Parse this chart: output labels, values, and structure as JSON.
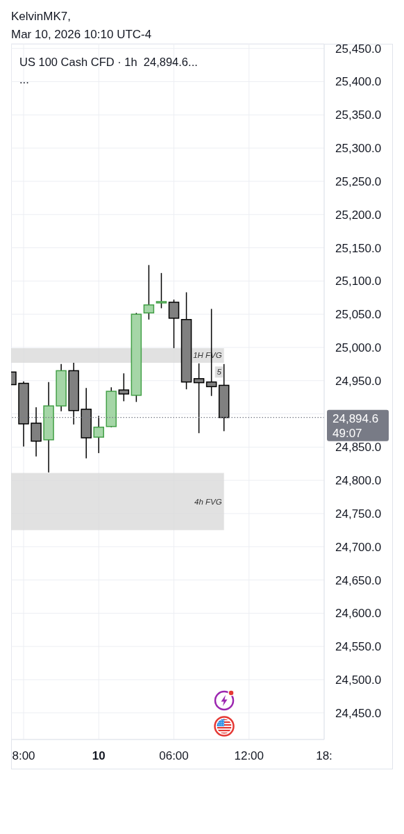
{
  "chart_data": {
    "type": "candlestick",
    "title": "US 100 Cash CFD · 1h  24,894.6...",
    "subtitle": "...",
    "annotations": [
      "KelvinMK7,",
      "Mar 10, 2026 10:10 UTC-4",
      {
        "text": "5",
        "x": "2026-03-10T10:00",
        "y": 24963
      }
    ],
    "x": [
      "2026-03-09T17:00",
      "2026-03-09T18:00",
      "2026-03-09T19:00",
      "2026-03-09T20:00",
      "2026-03-09T21:00",
      "2026-03-09T22:00",
      "2026-03-09T23:00",
      "2026-03-10T00:00",
      "2026-03-10T01:00",
      "2026-03-10T02:00",
      "2026-03-10T03:00",
      "2026-03-10T04:00",
      "2026-03-10T05:00",
      "2026-03-10T06:00",
      "2026-03-10T07:00",
      "2026-03-10T08:00",
      "2026-03-10T09:00",
      "2026-03-10T10:00"
    ],
    "ohlc": [
      [
        24963,
        24963,
        24944,
        24944
      ],
      [
        24946,
        24949,
        24851,
        24885
      ],
      [
        24886,
        24910,
        24836,
        24859
      ],
      [
        24861,
        24948,
        24812,
        24912
      ],
      [
        24912,
        24975,
        24904,
        24965
      ],
      [
        24965,
        24977,
        24884,
        24905
      ],
      [
        24907,
        24939,
        24833,
        24864
      ],
      [
        24865,
        24897,
        24841,
        24880
      ],
      [
        24881,
        24940,
        24880,
        24934
      ],
      [
        24936,
        24961,
        24919,
        24930
      ],
      [
        24928,
        25052,
        24918,
        25050
      ],
      [
        25052,
        25124,
        25042,
        25064
      ],
      [
        25067,
        25112,
        25059,
        25069
      ],
      [
        25068,
        25072,
        24999,
        25044
      ],
      [
        25042,
        25083,
        24937,
        24948
      ],
      [
        24953,
        24976,
        24871,
        24947
      ],
      [
        24948,
        25058,
        24927,
        24941
      ],
      [
        24943,
        24975,
        24874,
        24894.6
      ]
    ],
    "colors": [
      "#808080",
      "#808080",
      "#808080",
      "#a5d6a7",
      "#a5d6a7",
      "#808080",
      "#808080",
      "#a5d6a7",
      "#a5d6a7",
      "#808080",
      "#a5d6a7",
      "#a5d6a7",
      "#a5d6a7",
      "#808080",
      "#808080",
      "#808080",
      "#808080",
      "#808080"
    ],
    "xlim": [
      "2026-03-09T17:00",
      "2026-03-10T18:00"
    ],
    "xticks": [
      {
        "value": "2026-03-09T18:00",
        "label": "8:00"
      },
      {
        "value": "2026-03-10T00:00",
        "label": "10"
      },
      {
        "value": "2026-03-10T06:00",
        "label": "06:00"
      },
      {
        "value": "2026-03-10T12:00",
        "label": "12:00"
      },
      {
        "value": "2026-03-10T18:00",
        "label": "18:"
      }
    ],
    "ylim": [
      24410,
      25457
    ],
    "yticks": [
      {
        "value": 24450,
        "label": "24,450.0"
      },
      {
        "value": 24500,
        "label": "24,500.0"
      },
      {
        "value": 24550,
        "label": "24,550.0"
      },
      {
        "value": 24600,
        "label": "24,600.0"
      },
      {
        "value": 24650,
        "label": "24,650.0"
      },
      {
        "value": 24700,
        "label": "24,700.0"
      },
      {
        "value": 24750,
        "label": "24,750.0"
      },
      {
        "value": 24800,
        "label": "24,800.0"
      },
      {
        "value": 24850,
        "label": "24,850.0"
      },
      {
        "value": 24900,
        "label": null
      },
      {
        "value": 24950,
        "label": "24,950.0"
      },
      {
        "value": 25000,
        "label": "25,000.0"
      },
      {
        "value": 25050,
        "label": "25,050.0"
      },
      {
        "value": 25100,
        "label": "25,100.0"
      },
      {
        "value": 25150,
        "label": "25,150.0"
      },
      {
        "value": 25200,
        "label": "25,200.0"
      },
      {
        "value": 25250,
        "label": "25,250.0"
      },
      {
        "value": 25300,
        "label": "25,300.0"
      },
      {
        "value": 25350,
        "label": "25,350.0"
      },
      {
        "value": 25400,
        "label": "25,400.0"
      },
      {
        "value": 25450,
        "label": "25,450.0"
      }
    ],
    "grid": true,
    "ref_lines": [
      {
        "axis": "y",
        "value": 24894.6,
        "label": "24,894.6\n49:07",
        "color": "#787b86",
        "line_style": "dotted"
      }
    ],
    "bands": [
      {
        "axis": "y",
        "from": 24977,
        "to": 24999,
        "label": "1H FVG",
        "color": "#d9d9d9"
      },
      {
        "axis": "y",
        "from": 24725,
        "to": 24811,
        "label": "4h FVG",
        "color": "#d9d9d9"
      }
    ]
  }
}
